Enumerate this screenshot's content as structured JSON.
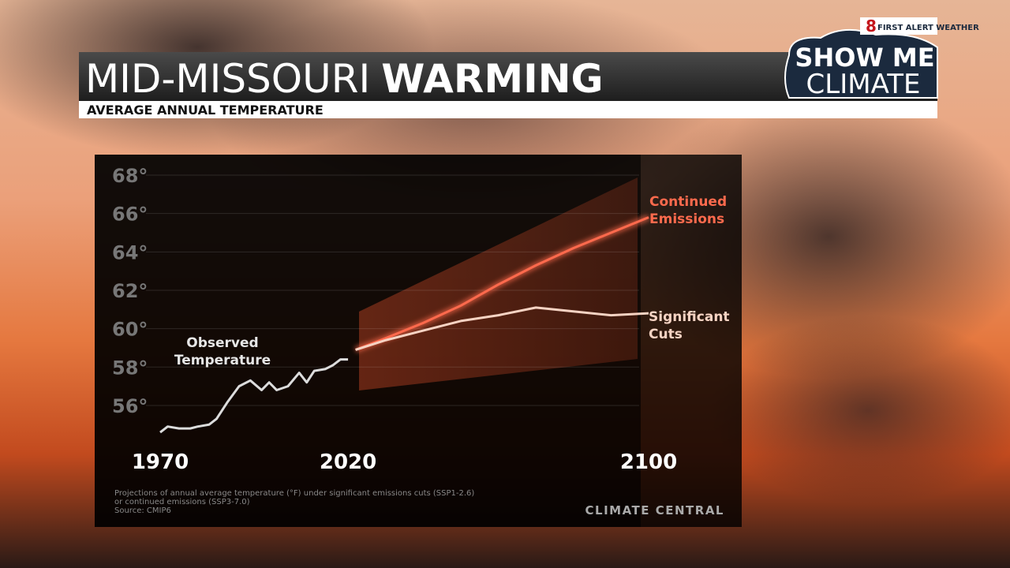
{
  "chart_data": {
    "type": "line",
    "title_regular": "MID-MISSOURI",
    "title_bold": "WARMING",
    "subtitle": "AVERAGE ANNUAL TEMPERATURE",
    "logo": {
      "channel": "8",
      "brand": "FIRST ALERT WEATHER",
      "show_me": "SHOW ME",
      "climate": "CLIMATE"
    },
    "xlim": [
      1970,
      2100
    ],
    "xticks": [
      1970,
      2020,
      2100
    ],
    "ylim": [
      54,
      69
    ],
    "yticks": [
      {
        "value": 56,
        "label": "56°"
      },
      {
        "value": 58,
        "label": "58°"
      },
      {
        "value": 60,
        "label": "60°"
      },
      {
        "value": 62,
        "label": "62°"
      },
      {
        "value": 64,
        "label": "64°"
      },
      {
        "value": 66,
        "label": "66°"
      },
      {
        "value": 68,
        "label": "68°"
      }
    ],
    "grid": true,
    "series": [
      {
        "name": "Observed Temperature",
        "color": "#dcdcdc",
        "x": [
          1970,
          1972,
          1975,
          1978,
          1980,
          1983,
          1985,
          1988,
          1991,
          1994,
          1997,
          1999,
          2001,
          2004,
          2007,
          2009,
          2011,
          2014,
          2016,
          2018,
          2020
        ],
        "values": [
          54.6,
          54.9,
          54.8,
          54.8,
          54.9,
          55.0,
          55.3,
          56.2,
          57.0,
          57.3,
          56.8,
          57.2,
          56.8,
          57.0,
          57.7,
          57.2,
          57.8,
          57.9,
          58.1,
          58.4,
          58.4
        ]
      },
      {
        "name": "Continued Emissions",
        "color": "#ff6a4d",
        "x": [
          2022,
          2030,
          2040,
          2050,
          2060,
          2070,
          2080,
          2090,
          2100
        ],
        "values": [
          58.9,
          59.5,
          60.3,
          61.2,
          62.3,
          63.3,
          64.2,
          65.0,
          65.8
        ]
      },
      {
        "name": "Significant Cuts",
        "color": "#f6d3c3",
        "x": [
          2022,
          2030,
          2040,
          2050,
          2060,
          2070,
          2080,
          2090,
          2100
        ],
        "values": [
          58.9,
          59.4,
          59.9,
          60.4,
          60.7,
          61.1,
          60.9,
          60.7,
          60.8
        ]
      }
    ],
    "notes": [
      "Projections of annual average temperature (°F) under significant emissions cuts (SSP1-2.6)",
      "or continued emissions (SSP3-7.0)",
      "Source: CMIP6"
    ],
    "credit": "CLIMATE CENTRAL"
  }
}
